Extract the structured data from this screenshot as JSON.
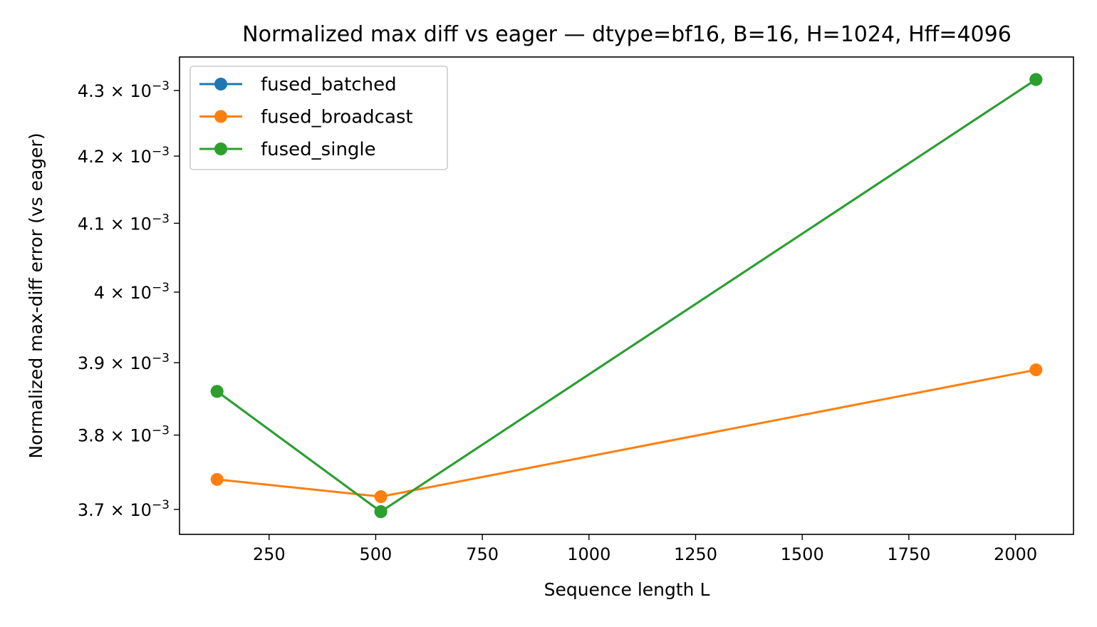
{
  "chart_data": {
    "type": "line",
    "title": "Normalized max diff vs eager — dtype=bf16, B=16, H=1024, Hff=4096",
    "xlabel": "Sequence length L",
    "ylabel": "Normalized max-diff error (vs eager)",
    "x": [
      128,
      512,
      2048
    ],
    "xlim": [
      40,
      2136
    ],
    "ylim": [
      0.003667,
      0.004352
    ],
    "yscale": "log",
    "x_ticks": [
      {
        "value": 250,
        "label": "250"
      },
      {
        "value": 500,
        "label": "500"
      },
      {
        "value": 750,
        "label": "750"
      },
      {
        "value": 1000,
        "label": "1000"
      },
      {
        "value": 1250,
        "label": "1250"
      },
      {
        "value": 1500,
        "label": "1500"
      },
      {
        "value": 1750,
        "label": "1750"
      },
      {
        "value": 2000,
        "label": "2000"
      }
    ],
    "y_ticks": [
      {
        "value": 0.0037,
        "mantissa": "3.7",
        "base": "10",
        "exponent": "−3"
      },
      {
        "value": 0.0038,
        "mantissa": "3.8",
        "base": "10",
        "exponent": "−3"
      },
      {
        "value": 0.0039,
        "mantissa": "3.9",
        "base": "10",
        "exponent": "−3"
      },
      {
        "value": 0.004,
        "mantissa": "4",
        "base": "10",
        "exponent": "−3"
      },
      {
        "value": 0.0041,
        "mantissa": "4.1",
        "base": "10",
        "exponent": "−3"
      },
      {
        "value": 0.0042,
        "mantissa": "4.2",
        "base": "10",
        "exponent": "−3"
      },
      {
        "value": 0.0043,
        "mantissa": "4.3",
        "base": "10",
        "exponent": "−3"
      }
    ],
    "series": [
      {
        "name": "fused_batched",
        "color": "#1f77b4",
        "values": [
          0.00386,
          0.003697,
          0.004317
        ]
      },
      {
        "name": "fused_broadcast",
        "color": "#ff7f0e",
        "values": [
          0.00374,
          0.003717,
          0.00389
        ]
      },
      {
        "name": "fused_single",
        "color": "#2ca02c",
        "values": [
          0.00386,
          0.003697,
          0.004317
        ]
      }
    ],
    "grid": false,
    "legend_position": "top-left"
  }
}
